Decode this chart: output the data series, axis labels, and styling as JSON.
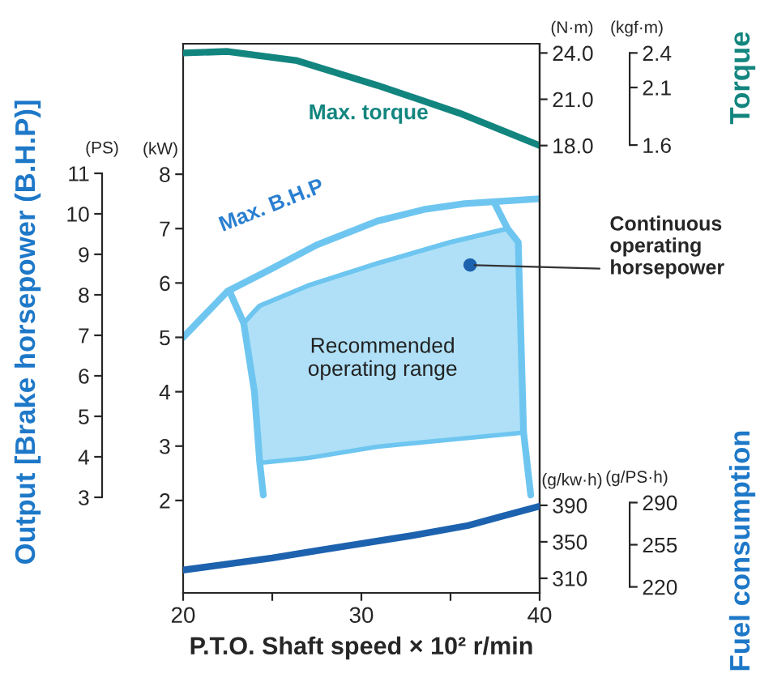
{
  "chart_data": [
    {
      "type": "line",
      "xlabel": "P.T.O. Shaft speed × 10² r/min",
      "ylabel": "(kW)",
      "y2label": "(N·m)",
      "y3label": "(g/kw·h)",
      "xlim": [
        20,
        40
      ],
      "xticks": [
        20,
        30,
        40
      ],
      "ylim": [
        0.3,
        10.4
      ],
      "yticks": [
        2,
        3,
        4,
        5,
        6,
        7,
        8
      ],
      "y2lim": [
        -11,
        24.6
      ],
      "y2ticks": [
        {
          "value": 18,
          "label": "18.0"
        },
        {
          "value": 21,
          "label": "21.0"
        },
        {
          "value": 24,
          "label": "24.0"
        }
      ],
      "y3lim": [
        294,
        896
      ],
      "y3ticks": [
        310,
        350,
        390
      ],
      "grid": false,
      "legend": false,
      "series": [
        {
          "name": "Max. torque",
          "type": "line",
          "axis": "y2",
          "color": "#13857f",
          "x": [
            20,
            22.5,
            26.4,
            30.9,
            35.5,
            40
          ],
          "values": [
            24.0,
            24.1,
            23.5,
            21.9,
            20.1,
            18.0
          ]
        },
        {
          "name": "Max. B.H.P",
          "type": "line",
          "axis": "y",
          "color": "#6ec6f0",
          "x": [
            20,
            22.5,
            24.9,
            27.5,
            30.9,
            33.5,
            35.8,
            40
          ],
          "values": [
            5.0,
            5.85,
            6.25,
            6.7,
            7.14,
            7.35,
            7.46,
            7.55
          ]
        },
        {
          "name": "Recommended\noperating range",
          "type": "line",
          "axis": "y",
          "color": "#6ec6f0",
          "x": [
            23.4,
            24.0,
            24.3,
            27,
            30.9,
            35,
            38.2,
            38.8,
            39.1
          ],
          "values": [
            5.26,
            5.48,
            5.58,
            5.95,
            6.36,
            6.75,
            7.0,
            6.75,
            3.25
          ],
          "lower": [
            5.26,
            4.0,
            2.69,
            2.78,
            2.99,
            3.12,
            3.22,
            3.24,
            3.25
          ],
          "upper": [
            5.26,
            5.48,
            5.58,
            5.95,
            6.36,
            6.75,
            7.0,
            6.75,
            3.25
          ]
        },
        {
          "type": "line",
          "axis": "y",
          "color": "#6ec6f0",
          "x": [
            22.6,
            23.4,
            24.0,
            24.3,
            24.5
          ],
          "values": [
            5.85,
            5.26,
            4.0,
            2.69,
            2.1
          ]
        },
        {
          "type": "line",
          "axis": "y",
          "color": "#6ec6f0",
          "x": [
            37.5,
            38.2,
            38.8,
            39.1,
            39.5
          ],
          "values": [
            7.45,
            7.0,
            6.75,
            3.25,
            2.1
          ]
        }
      ],
      "annotations": [
        "Output [Brake horsepower (B.H.P)]",
        "Torque",
        "Fuel consumption",
        {
          "text": "Continuous\noperating\nhorsepower",
          "x": 36.1,
          "y": 6.33
        }
      ]
    },
    {
      "type": "line",
      "tick_labels": "y",
      "xlim": [
        20,
        40
      ],
      "xticks": [
        20,
        {
          "value": 25,
          "label": null
        },
        30,
        {
          "value": 35,
          "label": null
        },
        40
      ],
      "series": [
        {
          "type": "line",
          "axis": "y3",
          "color": "#1d62ae",
          "x": [
            20,
            22.5,
            25,
            27.5,
            30,
            33,
            36,
            38,
            40
          ],
          "values": [
            234,
            239,
            244,
            250,
            256,
            263,
            271,
            279,
            287
          ]
        }
      ],
      "ylabel": "(PS)",
      "ylim": [
        0.64,
        14.2
      ],
      "yticks": [
        3,
        4,
        5,
        6,
        7,
        8,
        9,
        10,
        11
      ],
      "y2label": "(kgf·m)",
      "y2lim": [
        -2.29,
        2.48
      ],
      "y2ticks": [
        1.6,
        2.1,
        2.4
      ],
      "y3label": "(g/PS·h)",
      "y3lim": [
        215,
        671
      ],
      "y3ticks": [
        220,
        255,
        290
      ]
    }
  ]
}
